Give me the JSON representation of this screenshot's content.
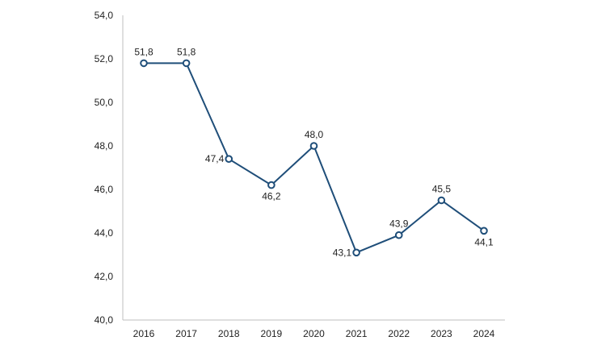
{
  "chart_data": {
    "type": "line",
    "title": "",
    "xlabel": "",
    "ylabel": "",
    "categories": [
      "2016",
      "2017",
      "2018",
      "2019",
      "2020",
      "2021",
      "2022",
      "2023",
      "2024"
    ],
    "series": [
      {
        "values": [
          51.8,
          51.8,
          47.4,
          46.2,
          48.0,
          43.1,
          43.9,
          45.5,
          44.1
        ],
        "data_labels": [
          "51,8",
          "51,8",
          "47,4",
          "46,2",
          "48,0",
          "43,1",
          "43,9",
          "45,5",
          "44,1"
        ],
        "color": "#1f4e79"
      }
    ],
    "ylim": [
      40,
      54
    ],
    "y_ticks": [
      40,
      42,
      44,
      46,
      48,
      50,
      52,
      54
    ],
    "y_tick_labels": [
      "40,0",
      "42,0",
      "44,0",
      "46,0",
      "48,0",
      "50,0",
      "52,0",
      "54,0"
    ],
    "grid": false,
    "legend": "none"
  }
}
